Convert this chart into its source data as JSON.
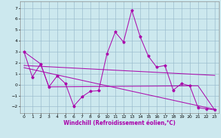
{
  "xlabel": "Windchill (Refroidissement éolien,°C)",
  "bg_color": "#cce8ee",
  "line_color": "#aa00aa",
  "grid_color": "#99bbcc",
  "xlim": [
    -0.5,
    23.5
  ],
  "ylim": [
    -2.6,
    7.6
  ],
  "yticks": [
    -2,
    -1,
    0,
    1,
    2,
    3,
    4,
    5,
    6,
    7
  ],
  "xticks": [
    0,
    1,
    2,
    3,
    4,
    5,
    6,
    7,
    8,
    9,
    10,
    11,
    12,
    13,
    14,
    15,
    16,
    17,
    18,
    19,
    20,
    21,
    22,
    23
  ],
  "line1_x": [
    0,
    1,
    2,
    3,
    4,
    5,
    6,
    7,
    8,
    9,
    10,
    11,
    12,
    13,
    14,
    15,
    16,
    17,
    18,
    19,
    20,
    21,
    22,
    23
  ],
  "line1_y": [
    3.0,
    0.7,
    1.9,
    -0.2,
    0.8,
    0.1,
    -1.95,
    -1.1,
    -0.6,
    -0.55,
    2.8,
    4.8,
    3.9,
    6.8,
    4.4,
    2.6,
    1.6,
    1.75,
    -0.5,
    0.1,
    -0.1,
    -2.1,
    -2.2,
    -2.3
  ],
  "line2_x": [
    0,
    2,
    3,
    21,
    23
  ],
  "line2_y": [
    3.0,
    1.9,
    -0.2,
    -0.1,
    -2.3
  ],
  "line3_x": [
    0,
    23
  ],
  "line3_y": [
    1.55,
    -2.25
  ],
  "line4_x": [
    0,
    23
  ],
  "line4_y": [
    1.75,
    0.85
  ]
}
